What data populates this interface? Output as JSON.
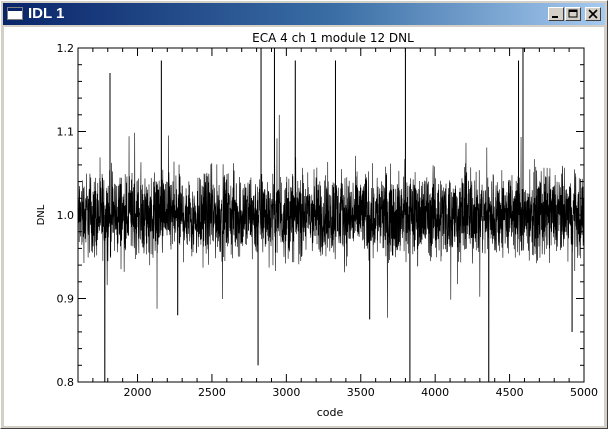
{
  "window": {
    "title": "IDL 1",
    "controls": {
      "minimize": "minimize",
      "maximize": "maximize",
      "close": "close"
    }
  },
  "chart_data": {
    "type": "line",
    "title": "ECA 4 ch 1 module 12 DNL",
    "xlabel": "code",
    "ylabel": "DNL",
    "xlim": [
      1600,
      5000
    ],
    "ylim": [
      0.8,
      1.2
    ],
    "xticks": [
      2000,
      2500,
      3000,
      3500,
      4000,
      4500,
      5000
    ],
    "xtick_labels": [
      "2000",
      "2500",
      "3000",
      "3500",
      "4000",
      "4500",
      "5000"
    ],
    "yticks": [
      0.8,
      0.9,
      1.0,
      1.1,
      1.2
    ],
    "ytick_labels": [
      "0.8",
      "0.9",
      "1.0",
      "1.1",
      "1.2"
    ],
    "grid": false,
    "series": [
      {
        "color": "#000000",
        "mean": 1.0,
        "typical_range": [
          0.95,
          1.05
        ],
        "spikes": [
          {
            "x": 1780,
            "y": 0.8
          },
          {
            "x": 1815,
            "y": 1.17
          },
          {
            "x": 2160,
            "y": 1.185
          },
          {
            "x": 2270,
            "y": 0.88
          },
          {
            "x": 2810,
            "y": 0.82
          },
          {
            "x": 2830,
            "y": 1.2
          },
          {
            "x": 2920,
            "y": 1.2
          },
          {
            "x": 3060,
            "y": 1.185
          },
          {
            "x": 3330,
            "y": 1.185
          },
          {
            "x": 3560,
            "y": 0.875
          },
          {
            "x": 3800,
            "y": 1.2
          },
          {
            "x": 3830,
            "y": 0.8
          },
          {
            "x": 4360,
            "y": 0.8
          },
          {
            "x": 4560,
            "y": 1.185
          },
          {
            "x": 4590,
            "y": 1.2
          },
          {
            "x": 4920,
            "y": 0.86
          }
        ]
      }
    ]
  }
}
